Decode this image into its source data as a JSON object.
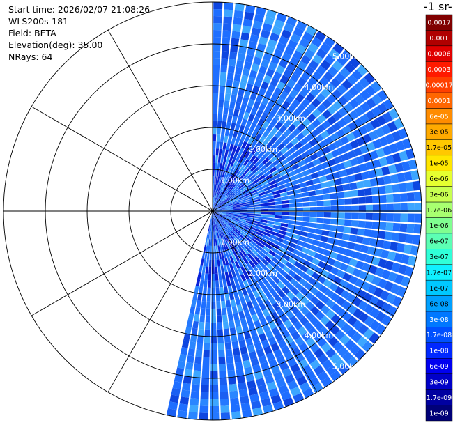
{
  "info": [
    "Start time: 2026/02/07 21:08:26",
    "WLS200s-181",
    "Field: BETA",
    "Elevation(deg): 35.00",
    "NRays: 64"
  ],
  "range_labels": [
    "1.00km",
    "2.00km",
    "3.00km",
    "4.00km",
    "5.00km"
  ],
  "colorbar": {
    "title": "-1 sr-",
    "levels": [
      {
        "label": "0.0017",
        "color": "#800000"
      },
      {
        "label": "0.001",
        "color": "#b00000"
      },
      {
        "label": "0.0006",
        "color": "#e00000"
      },
      {
        "label": "0.0003",
        "color": "#ff1a00"
      },
      {
        "label": "0.00017",
        "color": "#ff4000"
      },
      {
        "label": "0.0001",
        "color": "#ff6600"
      },
      {
        "label": "6e-05",
        "color": "#ff8c00"
      },
      {
        "label": "3e-05",
        "color": "#ffaa00"
      },
      {
        "label": "1.7e-05",
        "color": "#ffc800"
      },
      {
        "label": "1e-05",
        "color": "#ffe600"
      },
      {
        "label": "6e-06",
        "color": "#e6ff30"
      },
      {
        "label": "3e-06",
        "color": "#c8ff50"
      },
      {
        "label": "1.7e-06",
        "color": "#a8ff70"
      },
      {
        "label": "1e-06",
        "color": "#80ff90"
      },
      {
        "label": "6e-07",
        "color": "#5cffb4"
      },
      {
        "label": "3e-07",
        "color": "#30ffd8"
      },
      {
        "label": "1.7e-07",
        "color": "#10f0ff"
      },
      {
        "label": "1e-07",
        "color": "#00c8ff"
      },
      {
        "label": "6e-08",
        "color": "#00a0ff"
      },
      {
        "label": "3e-08",
        "color": "#0078ff"
      },
      {
        "label": "1.7e-08",
        "color": "#0050ff"
      },
      {
        "label": "1e-08",
        "color": "#0028ff"
      },
      {
        "label": "6e-09",
        "color": "#0000f0"
      },
      {
        "label": "3e-09",
        "color": "#0000c8"
      },
      {
        "label": "1.7e-09",
        "color": "#0000a0"
      },
      {
        "label": "1e-09",
        "color": "#000078"
      }
    ]
  }
}
